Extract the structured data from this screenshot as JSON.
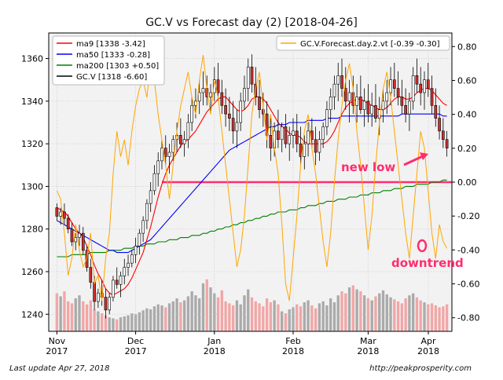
{
  "chart_data": {
    "type": "candlestick",
    "title": "GC.V vs Forecast day (2)  [2018-04-26]",
    "xlabel": "",
    "ylabel": "",
    "ylim": [
      1232,
      1372
    ],
    "y2lim": [
      -0.88,
      0.88
    ],
    "grid": true,
    "legend_placement": "top-left",
    "y_ticks": [
      "1240",
      "1260",
      "1280",
      "1300",
      "1320",
      "1340",
      "1360"
    ],
    "y2_ticks": [
      "-0.80",
      "-0.60",
      "-0.40",
      "-0.20",
      "0.00",
      "0.20",
      "0.40",
      "0.60",
      "0.80"
    ],
    "x_ticks": [
      {
        "line1": "Nov",
        "line2": "2017",
        "date": "2017-11-01"
      },
      {
        "line1": "Dec",
        "line2": "2017",
        "date": "2017-12-01"
      },
      {
        "line1": "Jan",
        "line2": "2018",
        "date": "2018-01-01"
      },
      {
        "line1": "Feb",
        "line2": "2018",
        "date": "2018-02-01"
      },
      {
        "line1": "Mar",
        "line2": "2018",
        "date": "2018-03-01"
      },
      {
        "line1": "Apr",
        "line2": "2018",
        "date": "2018-04-01"
      }
    ],
    "legend": [
      {
        "label": "ma9 [1338 -3.42]",
        "color": "#ff0000"
      },
      {
        "label": "ma50 [1333 -0.28]",
        "color": "#0000ff"
      },
      {
        "label": "ma200 [1303 +0.50]",
        "color": "#008000"
      },
      {
        "label": "GC.V [1318 -6.60]",
        "color": "#000000"
      }
    ],
    "legend2": {
      "label": "GC.V.Forecast.day.2.vt [-0.39 -0.30]",
      "color": "#ffa500"
    },
    "annotations": [
      {
        "text": "new low",
        "color": "#ff2d6f"
      },
      {
        "text": "downtrend",
        "color": "#ff2d6f"
      }
    ],
    "horizontal_line": {
      "value": 1302,
      "color": "#ff2d6f"
    },
    "candles": [
      [
        1290,
        1292,
        1284,
        1286
      ],
      [
        1286,
        1290,
        1282,
        1288
      ],
      [
        1288,
        1292,
        1282,
        1285
      ],
      [
        1285,
        1287,
        1278,
        1280
      ],
      [
        1280,
        1283,
        1272,
        1274
      ],
      [
        1274,
        1278,
        1270,
        1276
      ],
      [
        1276,
        1282,
        1272,
        1278
      ],
      [
        1278,
        1281,
        1268,
        1270
      ],
      [
        1270,
        1272,
        1260,
        1262
      ],
      [
        1262,
        1266,
        1252,
        1255
      ],
      [
        1255,
        1258,
        1242,
        1246
      ],
      [
        1246,
        1252,
        1243,
        1250
      ],
      [
        1250,
        1256,
        1244,
        1248
      ],
      [
        1248,
        1252,
        1238,
        1242
      ],
      [
        1242,
        1250,
        1240,
        1248
      ],
      [
        1248,
        1258,
        1246,
        1256
      ],
      [
        1256,
        1262,
        1252,
        1254
      ],
      [
        1254,
        1260,
        1248,
        1258
      ],
      [
        1258,
        1266,
        1254,
        1262
      ],
      [
        1262,
        1268,
        1258,
        1264
      ],
      [
        1264,
        1270,
        1262,
        1268
      ],
      [
        1268,
        1276,
        1264,
        1272
      ],
      [
        1272,
        1280,
        1268,
        1278
      ],
      [
        1278,
        1286,
        1274,
        1284
      ],
      [
        1284,
        1294,
        1280,
        1292
      ],
      [
        1292,
        1302,
        1288,
        1298
      ],
      [
        1298,
        1310,
        1296,
        1306
      ],
      [
        1306,
        1316,
        1300,
        1312
      ],
      [
        1312,
        1322,
        1308,
        1318
      ],
      [
        1318,
        1324,
        1310,
        1314
      ],
      [
        1314,
        1320,
        1306,
        1316
      ],
      [
        1316,
        1324,
        1312,
        1322
      ],
      [
        1322,
        1330,
        1316,
        1324
      ],
      [
        1324,
        1332,
        1318,
        1320
      ],
      [
        1320,
        1326,
        1314,
        1322
      ],
      [
        1322,
        1334,
        1318,
        1330
      ],
      [
        1330,
        1342,
        1326,
        1338
      ],
      [
        1338,
        1346,
        1332,
        1340
      ],
      [
        1340,
        1350,
        1334,
        1344
      ],
      [
        1344,
        1354,
        1338,
        1346
      ],
      [
        1346,
        1352,
        1338,
        1342
      ],
      [
        1342,
        1348,
        1334,
        1344
      ],
      [
        1344,
        1356,
        1340,
        1350
      ],
      [
        1350,
        1358,
        1340,
        1344
      ],
      [
        1344,
        1350,
        1334,
        1338
      ],
      [
        1338,
        1346,
        1328,
        1334
      ],
      [
        1334,
        1342,
        1326,
        1332
      ],
      [
        1332,
        1340,
        1320,
        1326
      ],
      [
        1326,
        1336,
        1318,
        1330
      ],
      [
        1330,
        1344,
        1326,
        1340
      ],
      [
        1340,
        1352,
        1336,
        1346
      ],
      [
        1346,
        1360,
        1340,
        1356
      ],
      [
        1356,
        1362,
        1344,
        1348
      ],
      [
        1348,
        1356,
        1338,
        1342
      ],
      [
        1342,
        1350,
        1332,
        1336
      ],
      [
        1336,
        1344,
        1328,
        1334
      ],
      [
        1334,
        1340,
        1318,
        1324
      ],
      [
        1324,
        1332,
        1312,
        1318
      ],
      [
        1318,
        1330,
        1314,
        1326
      ],
      [
        1326,
        1336,
        1318,
        1322
      ],
      [
        1322,
        1330,
        1316,
        1328
      ],
      [
        1328,
        1334,
        1318,
        1320
      ],
      [
        1320,
        1328,
        1312,
        1324
      ],
      [
        1324,
        1332,
        1318,
        1326
      ],
      [
        1326,
        1334,
        1316,
        1320
      ],
      [
        1320,
        1328,
        1310,
        1314
      ],
      [
        1314,
        1324,
        1308,
        1320
      ],
      [
        1320,
        1330,
        1314,
        1326
      ],
      [
        1326,
        1332,
        1318,
        1322
      ],
      [
        1322,
        1328,
        1310,
        1316
      ],
      [
        1316,
        1326,
        1312,
        1322
      ],
      [
        1322,
        1330,
        1318,
        1328
      ],
      [
        1328,
        1340,
        1324,
        1336
      ],
      [
        1336,
        1346,
        1330,
        1342
      ],
      [
        1342,
        1352,
        1336,
        1348
      ],
      [
        1348,
        1358,
        1340,
        1352
      ],
      [
        1352,
        1360,
        1342,
        1346
      ],
      [
        1346,
        1356,
        1336,
        1340
      ],
      [
        1340,
        1350,
        1330,
        1344
      ],
      [
        1344,
        1352,
        1334,
        1338
      ],
      [
        1338,
        1348,
        1330,
        1342
      ],
      [
        1342,
        1352,
        1334,
        1336
      ],
      [
        1336,
        1346,
        1328,
        1340
      ],
      [
        1340,
        1348,
        1330,
        1334
      ],
      [
        1334,
        1344,
        1328,
        1338
      ],
      [
        1338,
        1348,
        1330,
        1332
      ],
      [
        1332,
        1342,
        1324,
        1336
      ],
      [
        1336,
        1346,
        1330,
        1340
      ],
      [
        1340,
        1350,
        1334,
        1344
      ],
      [
        1344,
        1356,
        1338,
        1350
      ],
      [
        1350,
        1358,
        1342,
        1346
      ],
      [
        1346,
        1354,
        1338,
        1342
      ],
      [
        1342,
        1350,
        1334,
        1338
      ],
      [
        1338,
        1346,
        1330,
        1334
      ],
      [
        1334,
        1344,
        1326,
        1340
      ],
      [
        1340,
        1356,
        1336,
        1352
      ],
      [
        1352,
        1360,
        1344,
        1348
      ],
      [
        1348,
        1356,
        1338,
        1344
      ],
      [
        1344,
        1354,
        1336,
        1350
      ],
      [
        1350,
        1358,
        1342,
        1346
      ],
      [
        1346,
        1352,
        1334,
        1338
      ],
      [
        1338,
        1346,
        1328,
        1332
      ],
      [
        1332,
        1338,
        1322,
        1326
      ],
      [
        1326,
        1332,
        1318,
        1322
      ],
      [
        1322,
        1326,
        1314,
        1318
      ]
    ],
    "ma9": [
      1290,
      1289,
      1288,
      1286,
      1283,
      1280,
      1278,
      1276,
      1272,
      1268,
      1263,
      1259,
      1256,
      1252,
      1250,
      1249,
      1250,
      1251,
      1252,
      1254,
      1257,
      1261,
      1265,
      1269,
      1275,
      1281,
      1288,
      1295,
      1301,
      1306,
      1310,
      1313,
      1316,
      1319,
      1321,
      1322,
      1324,
      1326,
      1329,
      1332,
      1335,
      1337,
      1339,
      1341,
      1342,
      1342,
      1340,
      1338,
      1336,
      1335,
      1336,
      1338,
      1341,
      1342,
      1342,
      1341,
      1339,
      1336,
      1333,
      1330,
      1328,
      1327,
      1325,
      1324,
      1324,
      1323,
      1321,
      1320,
      1320,
      1320,
      1320,
      1320,
      1321,
      1323,
      1326,
      1330,
      1334,
      1337,
      1339,
      1340,
      1341,
      1341,
      1340,
      1339,
      1338,
      1337,
      1336,
      1336,
      1337,
      1339,
      1341,
      1342,
      1342,
      1341,
      1341,
      1342,
      1344,
      1345,
      1346,
      1346,
      1345,
      1343,
      1341,
      1339,
      1338
    ],
    "ma50": [
      1284,
      1283,
      1282,
      1281,
      1280,
      1279,
      1278,
      1277,
      1276,
      1275,
      1274,
      1273,
      1272,
      1271,
      1270,
      1270,
      1269,
      1269,
      1269,
      1269,
      1270,
      1271,
      1272,
      1273,
      1274,
      1275,
      1277,
      1279,
      1281,
      1283,
      1285,
      1287,
      1289,
      1291,
      1293,
      1295,
      1297,
      1299,
      1301,
      1303,
      1305,
      1307,
      1309,
      1311,
      1313,
      1315,
      1317,
      1318,
      1319,
      1320,
      1321,
      1322,
      1323,
      1324,
      1325,
      1326,
      1327,
      1328,
      1328,
      1329,
      1329,
      1329,
      1330,
      1330,
      1330,
      1330,
      1330,
      1331,
      1331,
      1331,
      1331,
      1331,
      1332,
      1332,
      1332,
      1332,
      1333,
      1333,
      1333,
      1333,
      1333,
      1333,
      1333,
      1333,
      1333,
      1333,
      1333,
      1333,
      1333,
      1333,
      1333,
      1333,
      1334,
      1334,
      1334,
      1334,
      1334,
      1334,
      1334,
      1334,
      1334,
      1334,
      1334,
      1333,
      1333
    ],
    "ma200": [
      1267,
      1267,
      1267,
      1267,
      1268,
      1268,
      1268,
      1268,
      1268,
      1269,
      1269,
      1269,
      1269,
      1269,
      1270,
      1270,
      1270,
      1270,
      1271,
      1271,
      1271,
      1272,
      1272,
      1272,
      1273,
      1273,
      1273,
      1274,
      1274,
      1274,
      1275,
      1275,
      1275,
      1276,
      1276,
      1276,
      1277,
      1277,
      1277,
      1278,
      1278,
      1279,
      1279,
      1280,
      1280,
      1281,
      1281,
      1282,
      1282,
      1283,
      1283,
      1284,
      1284,
      1285,
      1285,
      1286,
      1286,
      1287,
      1287,
      1288,
      1288,
      1288,
      1289,
      1289,
      1289,
      1290,
      1290,
      1291,
      1291,
      1291,
      1292,
      1292,
      1293,
      1293,
      1293,
      1294,
      1294,
      1294,
      1295,
      1295,
      1295,
      1296,
      1296,
      1296,
      1297,
      1297,
      1297,
      1298,
      1298,
      1298,
      1299,
      1299,
      1299,
      1300,
      1300,
      1300,
      1301,
      1301,
      1301,
      1301,
      1302,
      1302,
      1302,
      1303,
      1303
    ],
    "forecast": [
      -0.05,
      -0.1,
      -0.3,
      -0.55,
      -0.45,
      -0.25,
      -0.4,
      -0.5,
      -0.45,
      -0.3,
      -0.6,
      -0.55,
      -0.7,
      -0.45,
      -0.3,
      0.05,
      0.3,
      0.15,
      0.25,
      0.1,
      0.3,
      0.45,
      0.55,
      0.6,
      0.5,
      0.7,
      0.6,
      0.4,
      0.25,
      0.1,
      -0.1,
      0.1,
      0.3,
      0.45,
      0.55,
      0.65,
      0.5,
      0.4,
      0.6,
      0.75,
      0.55,
      0.4,
      0.6,
      0.5,
      0.3,
      0.1,
      -0.1,
      -0.3,
      -0.5,
      -0.4,
      -0.2,
      0.1,
      0.4,
      0.55,
      0.65,
      0.45,
      0.25,
      0.4,
      0.2,
      0.05,
      -0.25,
      -0.6,
      -0.7,
      -0.45,
      -0.2,
      0.1,
      0.3,
      0.4,
      0.2,
      0.05,
      -0.15,
      -0.35,
      -0.5,
      -0.3,
      0.0,
      0.25,
      0.45,
      0.6,
      0.7,
      0.55,
      0.3,
      0.1,
      -0.15,
      -0.4,
      -0.2,
      0.1,
      0.35,
      0.55,
      0.65,
      0.5,
      0.3,
      0.1,
      -0.1,
      -0.3,
      -0.45,
      -0.2,
      0.05,
      0.3,
      0.2,
      -0.05,
      -0.3,
      -0.45,
      -0.25,
      -0.35,
      -0.39
    ],
    "volume": [
      0.38,
      0.35,
      0.4,
      0.3,
      0.28,
      0.33,
      0.36,
      0.3,
      0.27,
      0.31,
      0.22,
      0.2,
      0.18,
      0.16,
      0.14,
      0.13,
      0.12,
      0.14,
      0.15,
      0.16,
      0.18,
      0.17,
      0.19,
      0.21,
      0.23,
      0.22,
      0.25,
      0.27,
      0.26,
      0.24,
      0.28,
      0.3,
      0.33,
      0.29,
      0.31,
      0.35,
      0.4,
      0.36,
      0.33,
      0.48,
      0.52,
      0.44,
      0.38,
      0.34,
      0.41,
      0.3,
      0.28,
      0.26,
      0.31,
      0.27,
      0.36,
      0.42,
      0.34,
      0.3,
      0.28,
      0.25,
      0.33,
      0.29,
      0.31,
      0.27,
      0.2,
      0.18,
      0.22,
      0.24,
      0.27,
      0.25,
      0.29,
      0.31,
      0.26,
      0.23,
      0.28,
      0.3,
      0.26,
      0.33,
      0.29,
      0.36,
      0.4,
      0.38,
      0.44,
      0.46,
      0.42,
      0.4,
      0.36,
      0.33,
      0.31,
      0.35,
      0.38,
      0.41,
      0.37,
      0.34,
      0.32,
      0.3,
      0.28,
      0.33,
      0.36,
      0.38,
      0.34,
      0.31,
      0.29,
      0.27,
      0.28,
      0.26,
      0.24,
      0.25,
      0.27
    ]
  },
  "footer": {
    "left": "Last update Apr 27, 2018",
    "right": "http://peakprosperity.com"
  }
}
